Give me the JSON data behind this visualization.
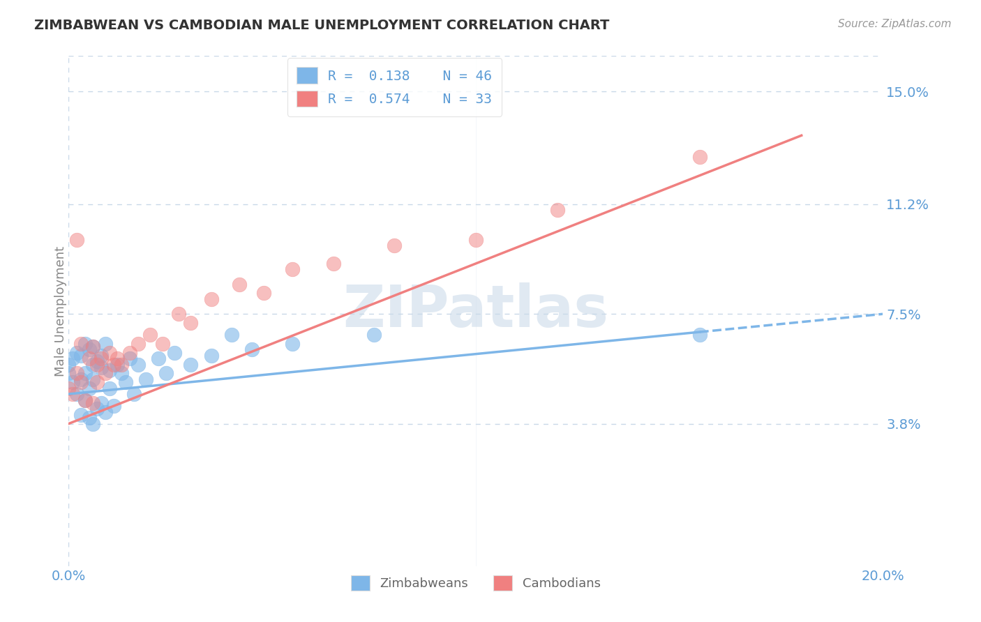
{
  "title": "ZIMBABWEAN VS CAMBODIAN MALE UNEMPLOYMENT CORRELATION CHART",
  "source": "Source: ZipAtlas.com",
  "ylabel": "Male Unemployment",
  "ytick_labels": [
    "3.8%",
    "7.5%",
    "11.2%",
    "15.0%"
  ],
  "ytick_values": [
    0.038,
    0.075,
    0.112,
    0.15
  ],
  "xmin": 0.0,
  "xmax": 0.2,
  "ymin": -0.01,
  "ymax": 0.162,
  "legend_label1": "R =  0.138    N = 46",
  "legend_label2": "R =  0.574    N = 33",
  "legend_bottom_label1": "Zimbabweans",
  "legend_bottom_label2": "Cambodians",
  "zim_color": "#7eb6e8",
  "cam_color": "#f08080",
  "watermark_color": "#c8d8e8",
  "background_color": "#ffffff",
  "grid_color": "#c8d8e8",
  "title_color": "#333333",
  "axis_label_color": "#5b9bd5",
  "zim_line_intercept": 0.048,
  "zim_line_slope": 0.135,
  "cam_line_intercept": 0.038,
  "cam_line_slope": 0.54,
  "zim_x": [
    0.0,
    0.0,
    0.001,
    0.001,
    0.002,
    0.002,
    0.003,
    0.003,
    0.003,
    0.004,
    0.004,
    0.004,
    0.005,
    0.005,
    0.005,
    0.006,
    0.006,
    0.006,
    0.006,
    0.007,
    0.007,
    0.008,
    0.008,
    0.008,
    0.009,
    0.009,
    0.01,
    0.01,
    0.011,
    0.012,
    0.013,
    0.014,
    0.015,
    0.016,
    0.017,
    0.019,
    0.022,
    0.024,
    0.026,
    0.03,
    0.035,
    0.04,
    0.045,
    0.055,
    0.075,
    0.155
  ],
  "zim_y": [
    0.055,
    0.058,
    0.052,
    0.06,
    0.048,
    0.062,
    0.041,
    0.053,
    0.061,
    0.046,
    0.055,
    0.065,
    0.04,
    0.05,
    0.063,
    0.038,
    0.053,
    0.058,
    0.064,
    0.043,
    0.059,
    0.045,
    0.057,
    0.061,
    0.042,
    0.065,
    0.05,
    0.056,
    0.044,
    0.058,
    0.055,
    0.052,
    0.06,
    0.048,
    0.058,
    0.053,
    0.06,
    0.055,
    0.062,
    0.058,
    0.061,
    0.068,
    0.063,
    0.065,
    0.068,
    0.068
  ],
  "cam_x": [
    0.0,
    0.001,
    0.002,
    0.003,
    0.003,
    0.004,
    0.005,
    0.006,
    0.006,
    0.007,
    0.007,
    0.008,
    0.009,
    0.01,
    0.011,
    0.012,
    0.013,
    0.015,
    0.017,
    0.02,
    0.023,
    0.027,
    0.03,
    0.035,
    0.042,
    0.048,
    0.055,
    0.065,
    0.08,
    0.1,
    0.12,
    0.155,
    0.002
  ],
  "cam_y": [
    0.05,
    0.048,
    0.055,
    0.052,
    0.065,
    0.046,
    0.06,
    0.045,
    0.064,
    0.052,
    0.058,
    0.06,
    0.055,
    0.062,
    0.058,
    0.06,
    0.058,
    0.062,
    0.065,
    0.068,
    0.065,
    0.075,
    0.072,
    0.08,
    0.085,
    0.082,
    0.09,
    0.092,
    0.098,
    0.1,
    0.11,
    0.128,
    0.1
  ]
}
